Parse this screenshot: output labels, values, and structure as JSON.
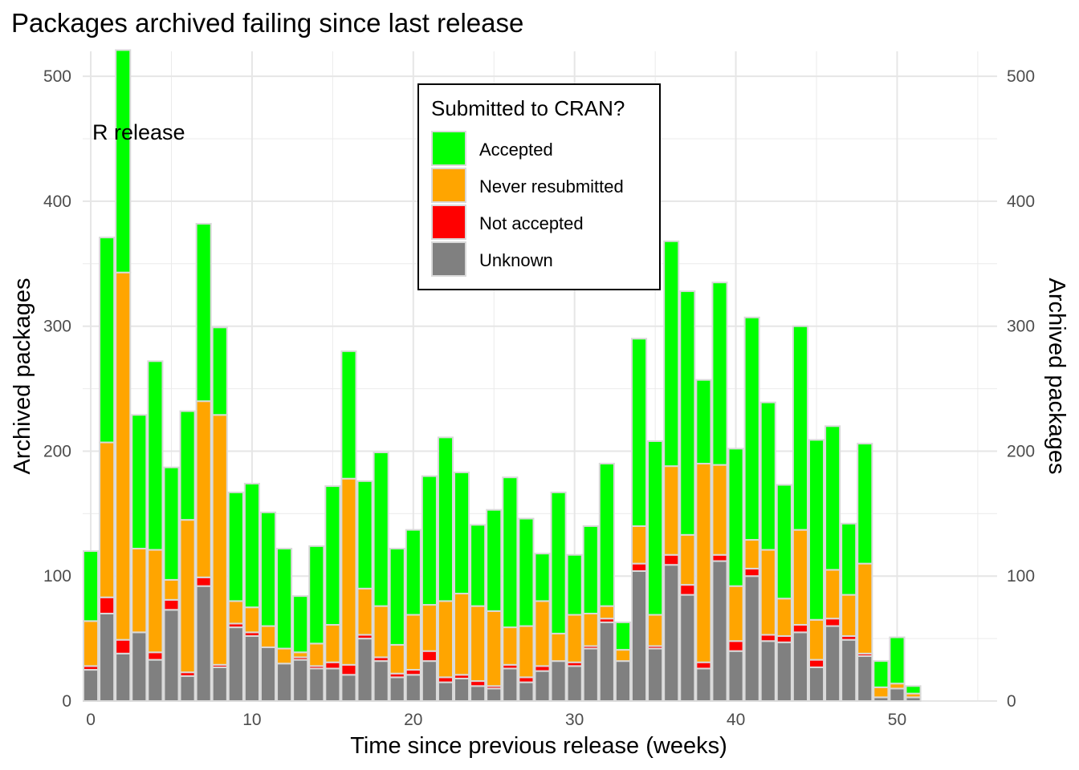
{
  "chart_data": {
    "type": "bar",
    "stacked": true,
    "title": "Packages archived failing since last release",
    "xlabel": "Time since previous release (weeks)",
    "ylabel": "Archived packages",
    "y2label": "Archived packages",
    "xlim": [
      -0.5,
      56.2
    ],
    "ylim": [
      0,
      520
    ],
    "x_ticks": [
      0,
      10,
      20,
      30,
      40,
      50
    ],
    "y_ticks": [
      0,
      100,
      200,
      300,
      400,
      500
    ],
    "grid": true,
    "secondary_y_axis": true,
    "annotation": {
      "text": "R release",
      "x": 3,
      "y": 457
    },
    "legend": {
      "title": "Submitted to CRAN?",
      "position": "top-center",
      "entries": [
        "Accepted",
        "Never resubmitted",
        "Not accepted",
        "Unknown"
      ]
    },
    "x": [
      0,
      1,
      2,
      3,
      4,
      5,
      6,
      7,
      8,
      9,
      10,
      11,
      12,
      13,
      14,
      15,
      16,
      17,
      18,
      19,
      20,
      21,
      22,
      23,
      24,
      25,
      26,
      27,
      28,
      29,
      30,
      31,
      32,
      33,
      34,
      35,
      36,
      37,
      38,
      39,
      40,
      41,
      42,
      43,
      44,
      45,
      46,
      47,
      48,
      49,
      50,
      51,
      52,
      53,
      54,
      55,
      56
    ],
    "series": [
      {
        "name": "Unknown",
        "color": "#808080",
        "values": [
          25,
          70,
          38,
          55,
          33,
          73,
          20,
          92,
          27,
          59,
          52,
          43,
          30,
          33,
          26,
          26,
          21,
          50,
          32,
          19,
          21,
          32,
          15,
          18,
          12,
          10,
          26,
          15,
          24,
          32,
          28,
          42,
          63,
          32,
          104,
          42,
          109,
          85,
          26,
          112,
          40,
          100,
          48,
          47,
          55,
          27,
          60,
          49,
          36,
          3,
          10,
          3,
          0,
          0,
          0,
          0,
          0
        ]
      },
      {
        "name": "Not accepted",
        "color": "#ff0000",
        "values": [
          3,
          13,
          11,
          0,
          6,
          8,
          3,
          7,
          2,
          3,
          3,
          0,
          0,
          2,
          2,
          5,
          8,
          3,
          3,
          3,
          4,
          8,
          4,
          3,
          4,
          2,
          3,
          4,
          4,
          0,
          3,
          2,
          3,
          0,
          6,
          2,
          8,
          8,
          5,
          5,
          8,
          6,
          5,
          5,
          6,
          6,
          6,
          3,
          2,
          0,
          0,
          0,
          0,
          0,
          0,
          0,
          0
        ]
      },
      {
        "name": "Never resubmitted",
        "color": "#ffa500",
        "values": [
          36,
          124,
          294,
          67,
          82,
          16,
          122,
          141,
          200,
          18,
          20,
          17,
          12,
          4,
          18,
          30,
          149,
          37,
          41,
          23,
          44,
          37,
          61,
          65,
          60,
          60,
          30,
          41,
          52,
          22,
          38,
          26,
          10,
          9,
          30,
          25,
          71,
          40,
          159,
          72,
          44,
          23,
          68,
          30,
          76,
          32,
          39,
          33,
          72,
          8,
          4,
          3,
          0,
          0,
          0,
          0,
          0
        ]
      },
      {
        "name": "Accepted",
        "color": "#00ff00",
        "values": [
          56,
          164,
          178,
          107,
          151,
          90,
          87,
          142,
          70,
          87,
          99,
          91,
          80,
          45,
          78,
          111,
          102,
          86,
          123,
          77,
          68,
          103,
          131,
          97,
          65,
          81,
          120,
          86,
          38,
          113,
          48,
          70,
          114,
          22,
          150,
          139,
          180,
          195,
          67,
          146,
          110,
          178,
          118,
          91,
          163,
          144,
          115,
          57,
          96,
          21,
          37,
          6,
          0,
          0,
          0,
          0,
          0
        ]
      }
    ]
  }
}
